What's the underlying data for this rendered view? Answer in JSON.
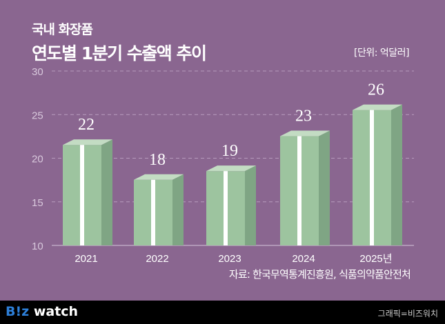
{
  "header": {
    "subtitle": "국내 화장품",
    "title": "연도별 1분기 수출액 추이",
    "unit": "[단위: 억달러]"
  },
  "source": "자료: 한국무역통계진흥원, 식품의약품안전처",
  "footer": {
    "logo": "B!z watch",
    "credit": "그래픽=비즈워치"
  },
  "colors": {
    "background": "#8a6690",
    "bar_front": "#9dc49f",
    "bar_side": "#7fa584",
    "band": "#ffffff"
  },
  "chart_data": {
    "type": "bar",
    "categories": [
      "2021",
      "2022",
      "2023",
      "2024",
      "2025년"
    ],
    "values": [
      22,
      18,
      19,
      23,
      26
    ],
    "ylim": [
      10,
      30
    ],
    "yticks": [
      10,
      15,
      20,
      25,
      30
    ],
    "grid": true
  }
}
